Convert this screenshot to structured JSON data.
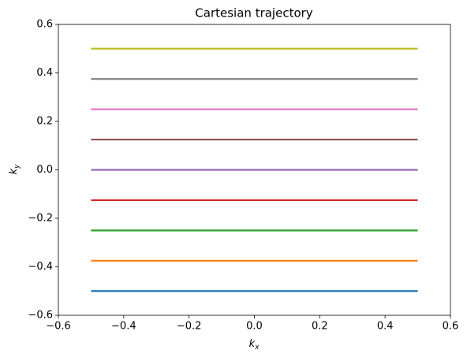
{
  "chart_data": {
    "type": "line",
    "title": "Cartesian trajectory",
    "xlabel": "k",
    "xlabel_subscript": "x",
    "ylabel": "k",
    "ylabel_subscript": "y",
    "x": [
      -0.5,
      0.5
    ],
    "series": [
      {
        "color": "#1f77b4",
        "values": [
          -0.5,
          -0.5
        ]
      },
      {
        "color": "#ff7f0e",
        "values": [
          -0.375,
          -0.375
        ]
      },
      {
        "color": "#2ca02c",
        "values": [
          -0.25,
          -0.25
        ]
      },
      {
        "color": "#d62728",
        "values": [
          -0.125,
          -0.125
        ]
      },
      {
        "color": "#9467bd",
        "values": [
          0,
          0
        ]
      },
      {
        "color": "#8c564b",
        "values": [
          0.125,
          0.125
        ]
      },
      {
        "color": "#e377c2",
        "values": [
          0.25,
          0.25
        ]
      },
      {
        "color": "#7f7f7f",
        "values": [
          0.375,
          0.375
        ]
      },
      {
        "color": "#bcbd22",
        "values": [
          0.5,
          0.5
        ]
      }
    ],
    "xlim": [
      -0.6,
      0.6
    ],
    "ylim": [
      -0.6,
      0.6
    ],
    "xticks": [
      {
        "value": -0.6,
        "label": "−0.6"
      },
      {
        "value": -0.4,
        "label": "−0.4"
      },
      {
        "value": -0.2,
        "label": "−0.2"
      },
      {
        "value": 0,
        "label": "0.0"
      },
      0.2,
      0.4,
      0.6
    ],
    "yticks": [
      {
        "value": -0.6,
        "label": "−0.6"
      },
      {
        "value": -0.4,
        "label": "−0.4"
      },
      {
        "value": -0.2,
        "label": "−0.2"
      },
      {
        "value": 0,
        "label": "0.0"
      },
      0.2,
      0.4,
      0.6
    ],
    "grid": false
  }
}
